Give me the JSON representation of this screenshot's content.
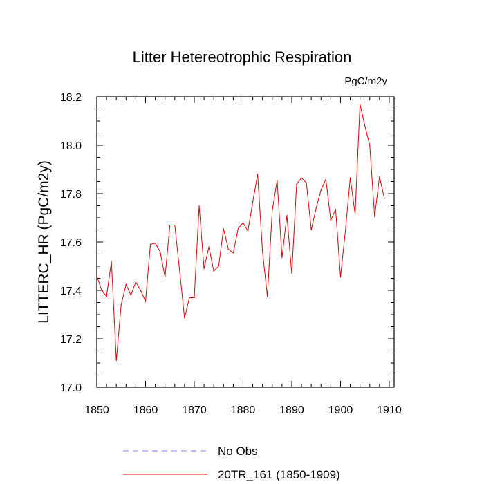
{
  "chart_data": {
    "type": "line",
    "title": "Litter Hetereotrophic Respiration",
    "units_label": "PgC/m2y",
    "xlabel": "",
    "ylabel": "LITTERC_HR  (PgC/m2y)",
    "xlim": [
      1850,
      1909
    ],
    "ylim": [
      17.0,
      18.2
    ],
    "x_ticks": [
      1850,
      1860,
      1870,
      1880,
      1890,
      1900,
      1910
    ],
    "x_tick_labels": [
      "1850",
      "1860",
      "1870",
      "1880",
      "1890",
      "1900",
      "1910"
    ],
    "y_ticks": [
      17.0,
      17.2,
      17.4,
      17.6,
      17.8,
      18.0,
      18.2
    ],
    "y_tick_labels": [
      "17.0",
      "17.2",
      "17.4",
      "17.6",
      "17.8",
      "18.0",
      "18.2"
    ],
    "grid": false,
    "legend_position": "bottom",
    "series": [
      {
        "name": "No Obs",
        "color": "#8080ff",
        "dashed": true,
        "x": [],
        "values": []
      },
      {
        "name": "20TR_161 (1850-1909)",
        "color": "#e00000",
        "dashed": false,
        "x": [
          1850,
          1851,
          1852,
          1853,
          1854,
          1855,
          1856,
          1857,
          1858,
          1859,
          1860,
          1861,
          1862,
          1863,
          1864,
          1865,
          1866,
          1867,
          1868,
          1869,
          1870,
          1871,
          1872,
          1873,
          1874,
          1875,
          1876,
          1877,
          1878,
          1879,
          1880,
          1881,
          1882,
          1883,
          1884,
          1885,
          1886,
          1887,
          1888,
          1889,
          1890,
          1891,
          1892,
          1893,
          1894,
          1895,
          1896,
          1897,
          1898,
          1899,
          1900,
          1901,
          1902,
          1903,
          1904,
          1905,
          1906,
          1907,
          1908,
          1909
        ],
        "values": [
          17.46,
          17.4,
          17.375,
          17.52,
          17.11,
          17.34,
          17.425,
          17.38,
          17.435,
          17.4,
          17.355,
          17.59,
          17.595,
          17.56,
          17.455,
          17.67,
          17.67,
          17.48,
          17.285,
          17.37,
          17.37,
          17.75,
          17.49,
          17.58,
          17.48,
          17.5,
          17.655,
          17.57,
          17.555,
          17.655,
          17.68,
          17.645,
          17.765,
          17.88,
          17.56,
          17.375,
          17.73,
          17.855,
          17.535,
          17.71,
          17.47,
          17.84,
          17.865,
          17.845,
          17.65,
          17.74,
          17.815,
          17.86,
          17.69,
          17.735,
          17.455,
          17.645,
          17.865,
          17.715,
          18.17,
          18.08,
          18.0,
          17.705,
          17.87,
          17.78
        ]
      }
    ]
  }
}
